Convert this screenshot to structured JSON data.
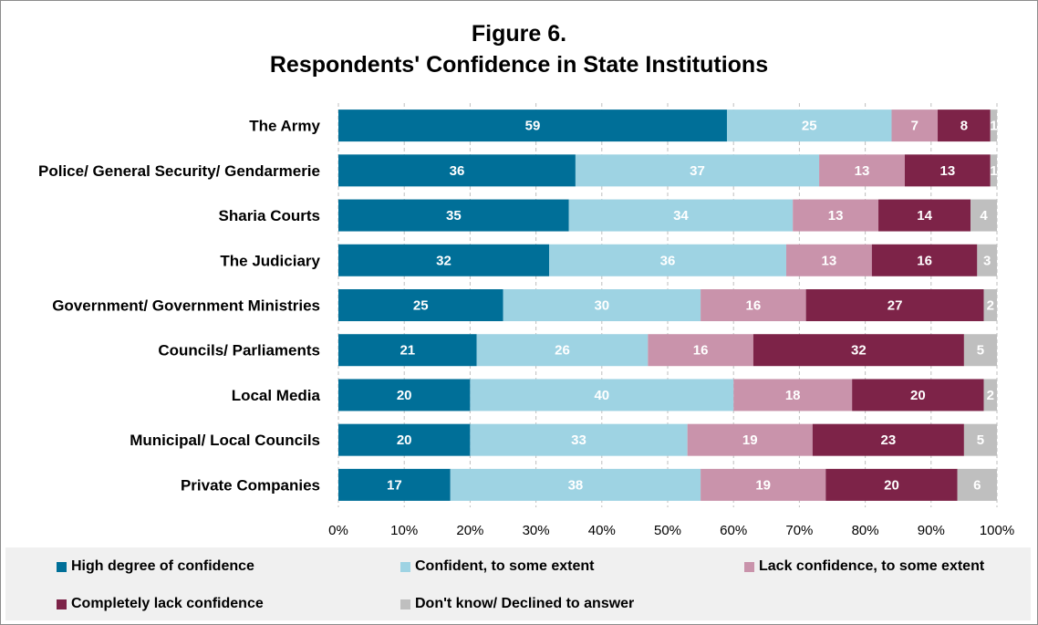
{
  "chart_data": {
    "type": "bar",
    "orientation": "horizontal",
    "stacked": true,
    "title": "Figure 6.",
    "subtitle": "Respondents' Confidence in State Institutions",
    "categories": [
      "The Army",
      "Police/ General Security/ Gendarmerie",
      "Sharia Courts",
      "The Judiciary",
      "Government/ Government Ministries",
      "Councils/ Parliaments",
      "Local Media",
      "Municipal/ Local Councils",
      "Private Companies"
    ],
    "series": [
      {
        "name": "High degree of confidence",
        "color": "#006f98",
        "values": [
          59,
          36,
          35,
          32,
          25,
          21,
          20,
          20,
          17
        ]
      },
      {
        "name": "Confident, to some extent",
        "color": "#9ed3e3",
        "values": [
          25,
          37,
          34,
          36,
          30,
          26,
          40,
          33,
          38
        ]
      },
      {
        "name": "Lack confidence, to some extent",
        "color": "#c993ab",
        "values": [
          7,
          13,
          13,
          13,
          16,
          16,
          18,
          19,
          19
        ]
      },
      {
        "name": "Completely lack confidence",
        "color": "#7d2348",
        "values": [
          8,
          13,
          14,
          16,
          27,
          32,
          20,
          23,
          20
        ]
      },
      {
        "name": "Don't know/ Declined to answer",
        "color": "#bfbfbf",
        "values": [
          1,
          1,
          4,
          3,
          2,
          5,
          2,
          5,
          6
        ]
      }
    ],
    "xlim": [
      0,
      100
    ],
    "xticks": [
      "0%",
      "10%",
      "20%",
      "30%",
      "40%",
      "50%",
      "60%",
      "70%",
      "80%",
      "90%",
      "100%"
    ],
    "grid": "vertical dashed",
    "legend": "bottom"
  }
}
